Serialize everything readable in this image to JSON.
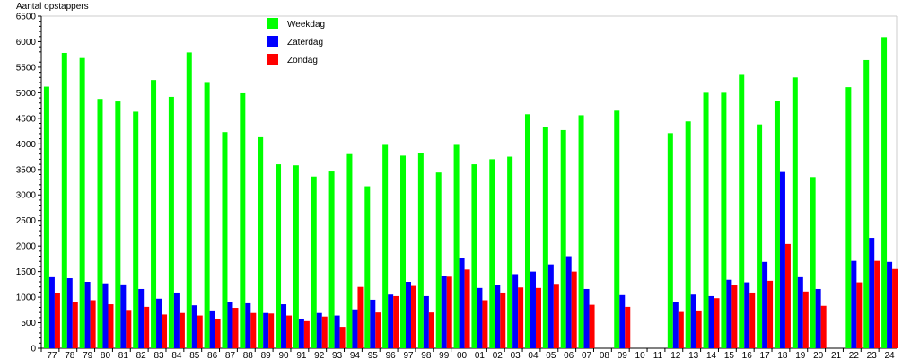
{
  "chart_data": {
    "type": "bar",
    "title": "",
    "ylabel": "Aantal opstappers",
    "xlabel": "",
    "ylim": [
      0,
      6500
    ],
    "yticks": [
      0,
      500,
      1000,
      1500,
      2000,
      2500,
      3000,
      3500,
      4000,
      4500,
      5000,
      5500,
      6000,
      6500
    ],
    "grid": false,
    "legend_position": "top-left",
    "categories": [
      "77",
      "78",
      "79",
      "80",
      "81",
      "82",
      "83",
      "84",
      "85",
      "86",
      "87",
      "88",
      "89",
      "90",
      "91",
      "92",
      "93",
      "94",
      "95",
      "96",
      "97",
      "98",
      "99",
      "00",
      "01",
      "02",
      "03",
      "04",
      "05",
      "06",
      "07",
      "08",
      "09",
      "10",
      "11",
      "12",
      "13",
      "14",
      "15",
      "16",
      "17",
      "18",
      "19",
      "20",
      "21",
      "22",
      "23",
      "24"
    ],
    "series": [
      {
        "name": "Weekdag",
        "color": "#00ff00",
        "values": [
          5120,
          5780,
          5680,
          4880,
          4830,
          4630,
          5250,
          4920,
          5790,
          5210,
          4230,
          4990,
          4130,
          3600,
          3580,
          3360,
          3460,
          3800,
          3170,
          3980,
          3770,
          3820,
          3440,
          3980,
          3600,
          3700,
          3750,
          4580,
          4330,
          4270,
          4560,
          null,
          4650,
          null,
          null,
          4210,
          4440,
          5000,
          5000,
          5350,
          4380,
          4840,
          5300,
          3350,
          null,
          5110,
          5640,
          6090
        ]
      },
      {
        "name": "Zaterdag",
        "color": "#0000ff",
        "values": [
          1390,
          1370,
          1300,
          1270,
          1250,
          1160,
          970,
          1090,
          840,
          740,
          900,
          880,
          690,
          860,
          580,
          690,
          640,
          760,
          950,
          1050,
          1300,
          1020,
          1410,
          1770,
          1180,
          1240,
          1450,
          1500,
          1640,
          1800,
          1160,
          null,
          1040,
          null,
          null,
          900,
          1050,
          1020,
          1340,
          1290,
          1690,
          3450,
          1390,
          1160,
          null,
          1710,
          2160,
          1690
        ]
      },
      {
        "name": "Zondag",
        "color": "#ff0000",
        "values": [
          1080,
          900,
          940,
          860,
          750,
          810,
          660,
          690,
          640,
          580,
          790,
          690,
          680,
          640,
          530,
          620,
          420,
          1200,
          700,
          1020,
          1220,
          700,
          1400,
          1540,
          940,
          1090,
          1190,
          1180,
          1260,
          1500,
          850,
          null,
          810,
          null,
          null,
          710,
          740,
          980,
          1240,
          1090,
          1320,
          2040,
          1110,
          830,
          null,
          1290,
          1710,
          1550
        ]
      }
    ]
  }
}
